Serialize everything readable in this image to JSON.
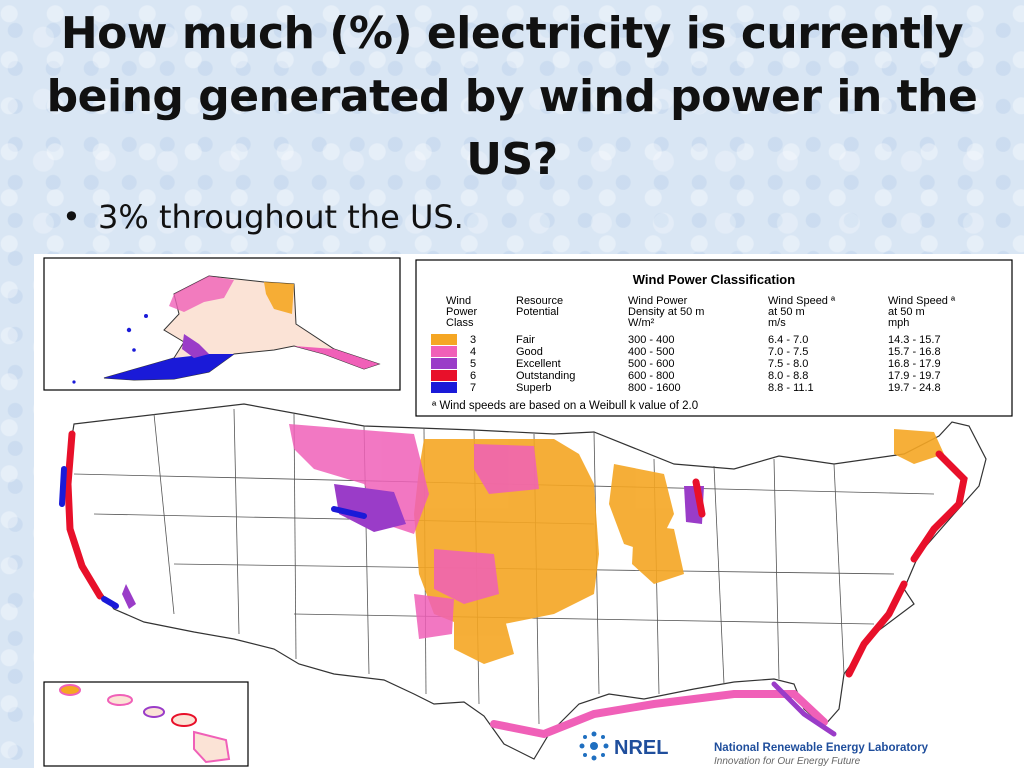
{
  "slide": {
    "title": "How much (%) electricity is currently being generated by wind power in the US?",
    "bullets": [
      "3% throughout the US."
    ]
  },
  "legend": {
    "title": "Wind Power Classification",
    "headers": {
      "class": [
        "Wind",
        "Power",
        "Class"
      ],
      "potential": [
        "Resource",
        "Potential"
      ],
      "density": [
        "Wind Power",
        "Density at 50 m",
        "W/m²"
      ],
      "speed_ms": [
        "Wind Speed ª",
        "at 50 m",
        "m/s"
      ],
      "speed_mph": [
        "Wind Speed ª",
        "at 50 m",
        "mph"
      ]
    },
    "rows": [
      {
        "class": "3",
        "potential": "Fair",
        "density": "300 -  400",
        "speed_ms": "6.4 -  7.0",
        "speed_mph": "14.3 - 15.7",
        "color": "#f5a623"
      },
      {
        "class": "4",
        "potential": "Good",
        "density": "400 -  500",
        "speed_ms": "7.0 -  7.5",
        "speed_mph": "15.7 - 16.8",
        "color": "#f060b8"
      },
      {
        "class": "5",
        "potential": "Excellent",
        "density": "500 -  600",
        "speed_ms": "7.5 -  8.0",
        "speed_mph": "16.8 - 17.9",
        "color": "#9a3cc8"
      },
      {
        "class": "6",
        "potential": "Outstanding",
        "density": "600 -  800",
        "speed_ms": "8.0 -  8.8",
        "speed_mph": "17.9 - 19.7",
        "color": "#e8102a"
      },
      {
        "class": "7",
        "potential": "Superb",
        "density": "800 - 1600",
        "speed_ms": "8.8 - 11.1",
        "speed_mph": "19.7 - 24.8",
        "color": "#1a1ad8"
      }
    ],
    "footnote": "ª Wind speeds are based on a Weibull k value of 2.0"
  },
  "logo": {
    "acronym": "NREL",
    "name": "National Renewable Energy Laboratory",
    "tagline": "Innovation for Our Energy Future"
  },
  "colors": {
    "fair": "#f5a623",
    "good": "#f060b8",
    "excellent": "#9a3cc8",
    "outstanding": "#e8102a",
    "superb": "#1a1ad8",
    "nrel_blue": "#1f4e9c"
  }
}
